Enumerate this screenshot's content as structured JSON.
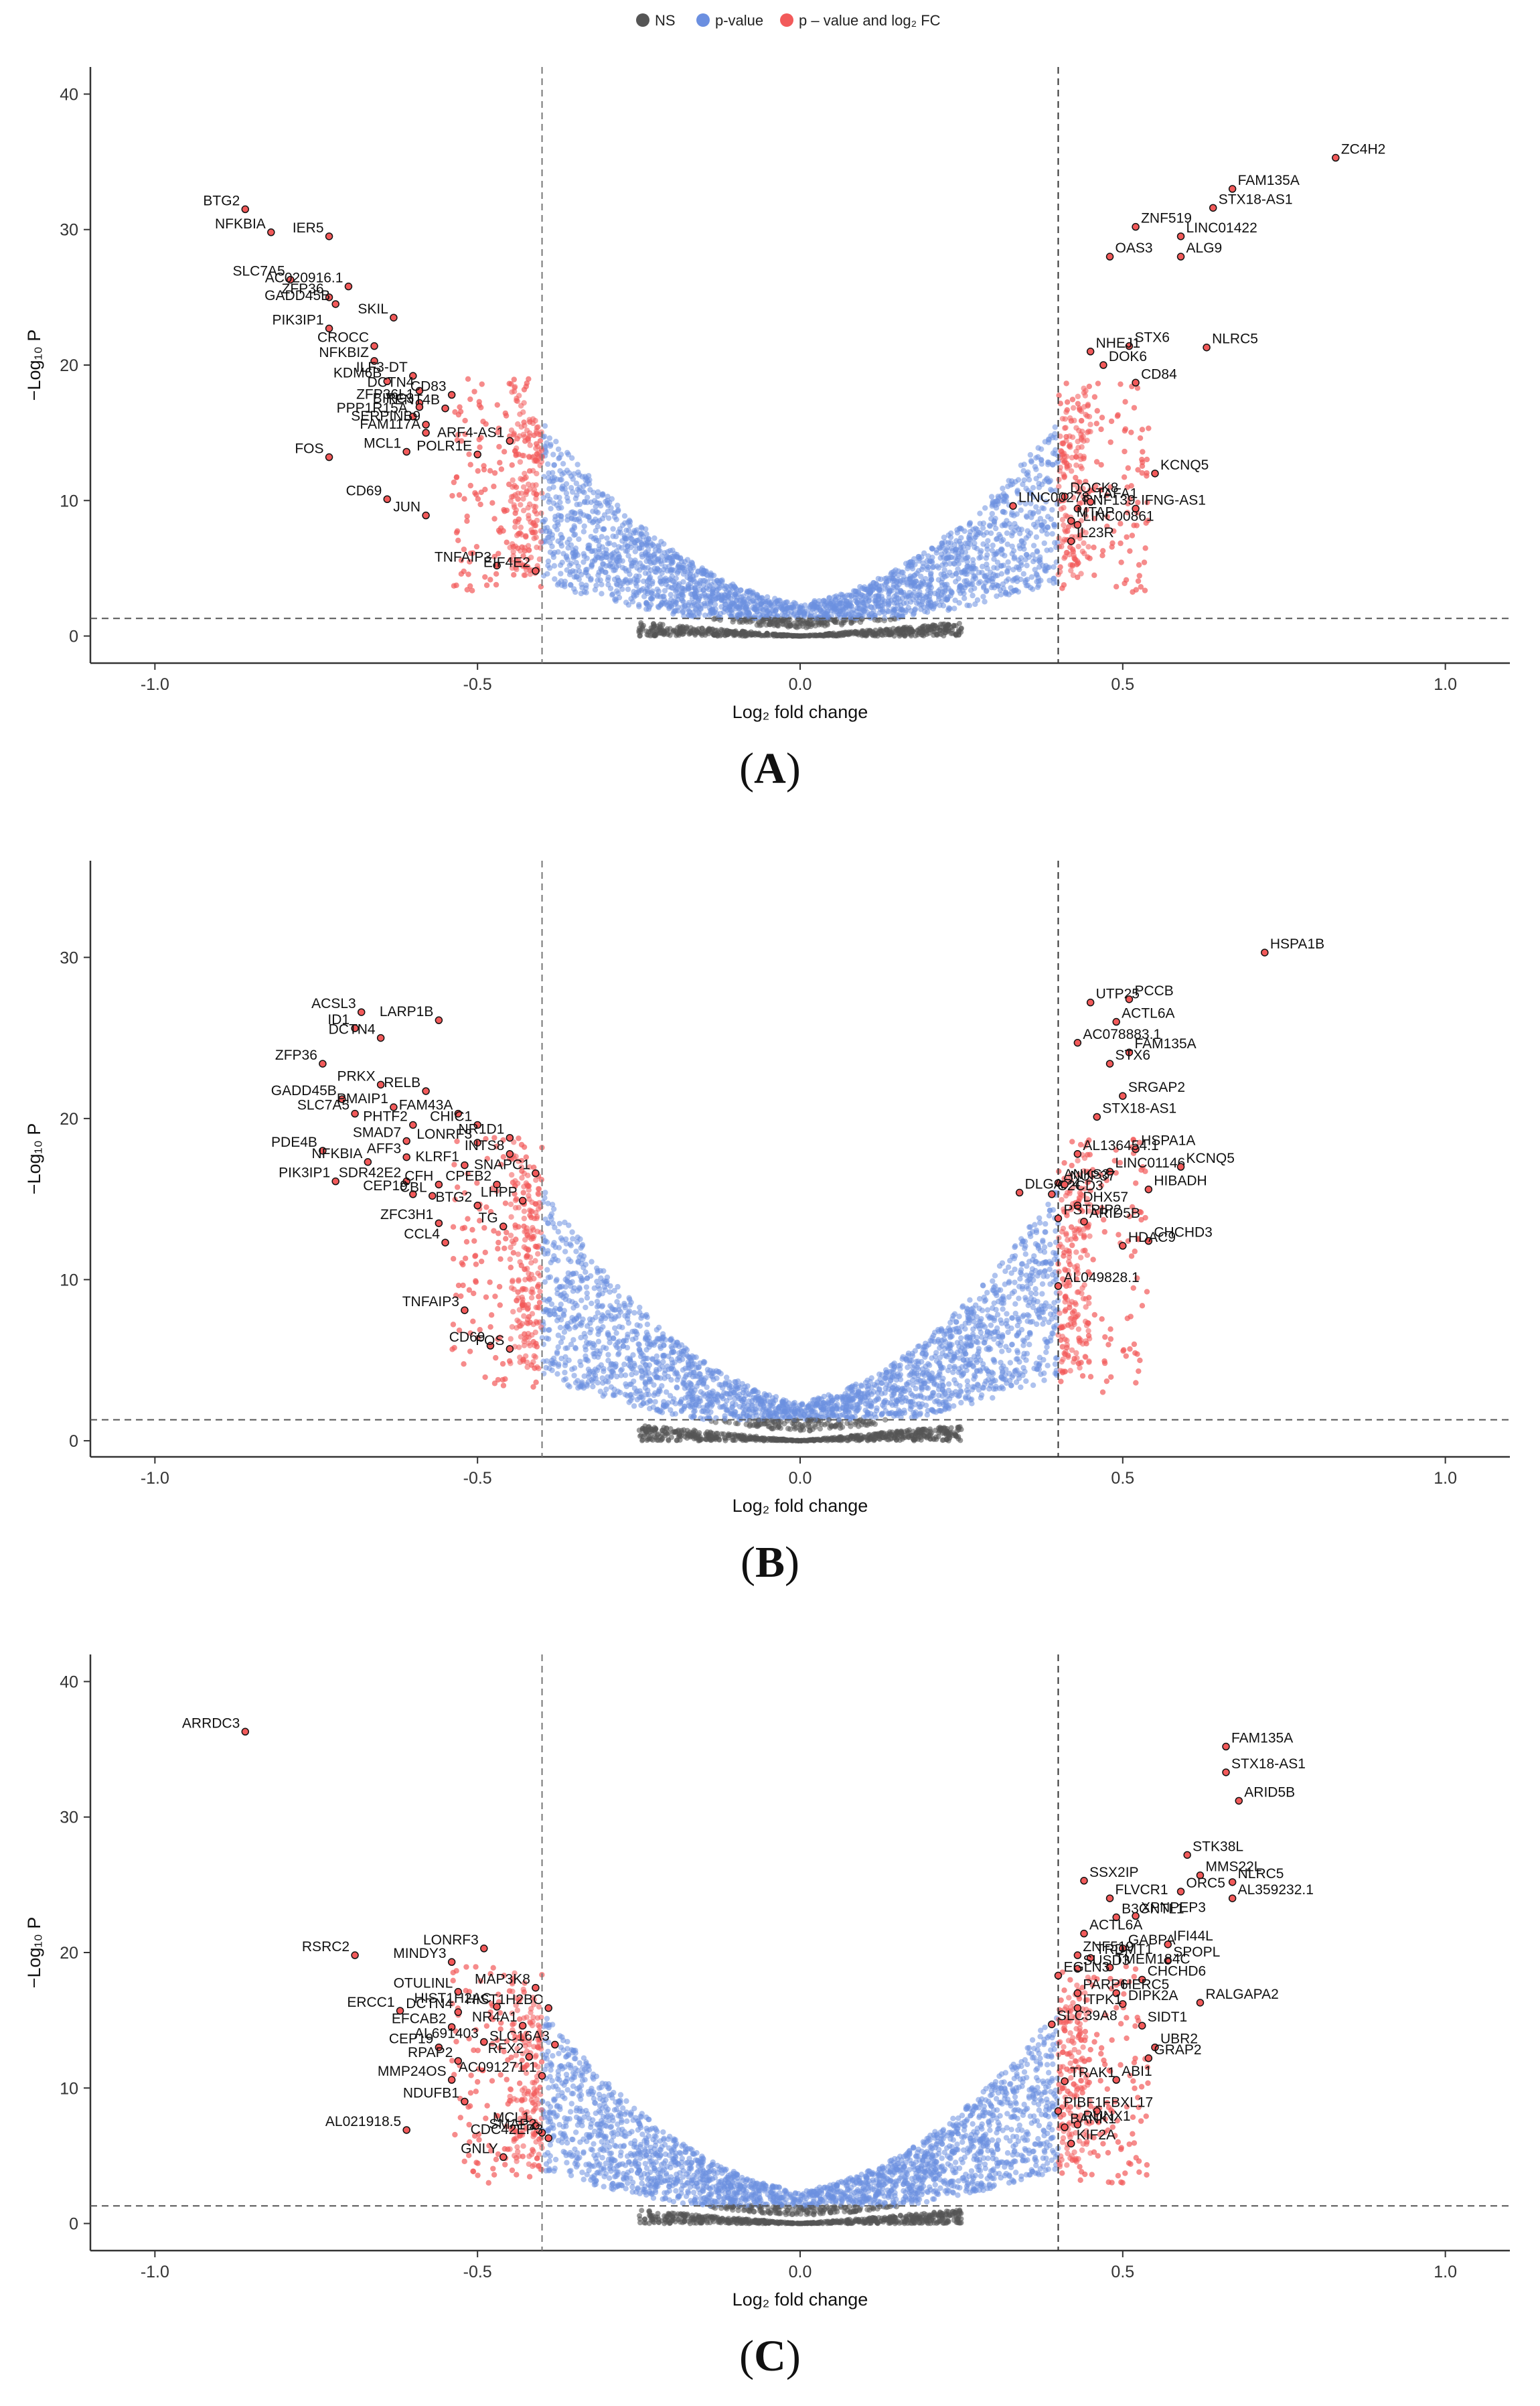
{
  "legend": {
    "items": [
      {
        "label": "NS",
        "color": "#555555"
      },
      {
        "label": "p-value",
        "color": "#6b8fe0"
      },
      {
        "label": "p – value and log₂ FC",
        "color": "#f25a5a"
      }
    ]
  },
  "captions": [
    "A",
    "B",
    "C"
  ],
  "chart_data": [
    {
      "type": "scatter",
      "panel": "A",
      "xlabel": "Log₂ fold change",
      "ylabel": "−Log₁₀ P",
      "xlim": [
        -1.1,
        1.1
      ],
      "ylim": [
        -2,
        42
      ],
      "xticks": [
        -1.0,
        -0.5,
        0.0,
        0.5,
        1.0
      ],
      "xtick_labels": [
        "-1.0",
        "-0.5",
        "0.0",
        "0.5",
        "1.0"
      ],
      "yticks": [
        0,
        10,
        20,
        30,
        40
      ],
      "ytick_labels": [
        "0",
        "10",
        "20",
        "30",
        "40"
      ],
      "fc_cutoffs": [
        -0.4,
        0.4
      ],
      "p_cutoff": 1.3,
      "labeled_points": [
        {
          "name": "BTG2",
          "x": -0.86,
          "y": 31.5
        },
        {
          "name": "NFKBIA",
          "x": -0.82,
          "y": 29.8
        },
        {
          "name": "IER5",
          "x": -0.73,
          "y": 29.5
        },
        {
          "name": "SLC7A5",
          "x": -0.79,
          "y": 26.3
        },
        {
          "name": "AC020916.1",
          "x": -0.7,
          "y": 25.8
        },
        {
          "name": "ZFP36",
          "x": -0.73,
          "y": 25.0
        },
        {
          "name": "GADD45B",
          "x": -0.72,
          "y": 24.5
        },
        {
          "name": "SKIL",
          "x": -0.63,
          "y": 23.5
        },
        {
          "name": "PIK3IP1",
          "x": -0.73,
          "y": 22.7
        },
        {
          "name": "CROCC",
          "x": -0.66,
          "y": 21.4
        },
        {
          "name": "NFKBIZ",
          "x": -0.66,
          "y": 20.3
        },
        {
          "name": "ILF3-DT",
          "x": -0.6,
          "y": 19.2
        },
        {
          "name": "KDM6B",
          "x": -0.64,
          "y": 18.8
        },
        {
          "name": "DCTN4",
          "x": -0.59,
          "y": 18.1
        },
        {
          "name": "CD83",
          "x": -0.54,
          "y": 17.8
        },
        {
          "name": "ZFP36L1",
          "x": -0.59,
          "y": 17.2
        },
        {
          "name": "BIRC3",
          "x": -0.59,
          "y": 16.9
        },
        {
          "name": "TENT4B",
          "x": -0.55,
          "y": 16.8
        },
        {
          "name": "PPP1R15A",
          "x": -0.6,
          "y": 16.2
        },
        {
          "name": "SERPINB9",
          "x": -0.58,
          "y": 15.6
        },
        {
          "name": "FAM117A",
          "x": -0.58,
          "y": 15.0
        },
        {
          "name": "ARF4-AS1",
          "x": -0.45,
          "y": 14.4
        },
        {
          "name": "MCL1",
          "x": -0.61,
          "y": 13.6
        },
        {
          "name": "POLR1E",
          "x": -0.5,
          "y": 13.4
        },
        {
          "name": "FOS",
          "x": -0.73,
          "y": 13.2
        },
        {
          "name": "CD69",
          "x": -0.64,
          "y": 10.1
        },
        {
          "name": "JUN",
          "x": -0.58,
          "y": 8.9
        },
        {
          "name": "TNFAIP3",
          "x": -0.47,
          "y": 5.2
        },
        {
          "name": "EIF4E2",
          "x": -0.41,
          "y": 4.8
        },
        {
          "name": "ZC4H2",
          "x": 0.83,
          "y": 35.3
        },
        {
          "name": "FAM135A",
          "x": 0.67,
          "y": 33.0
        },
        {
          "name": "STX18-AS1",
          "x": 0.64,
          "y": 31.6
        },
        {
          "name": "ZNF519",
          "x": 0.52,
          "y": 30.2
        },
        {
          "name": "LINC01422",
          "x": 0.59,
          "y": 29.5
        },
        {
          "name": "OAS3",
          "x": 0.48,
          "y": 28.0
        },
        {
          "name": "ALG9",
          "x": 0.59,
          "y": 28.0
        },
        {
          "name": "STX6",
          "x": 0.51,
          "y": 21.4
        },
        {
          "name": "NHEJ1",
          "x": 0.45,
          "y": 21.0
        },
        {
          "name": "NLRC5",
          "x": 0.63,
          "y": 21.3
        },
        {
          "name": "DOK6",
          "x": 0.47,
          "y": 20.0
        },
        {
          "name": "CD84",
          "x": 0.52,
          "y": 18.7
        },
        {
          "name": "KCNQ5",
          "x": 0.55,
          "y": 12.0
        },
        {
          "name": "DOCK8",
          "x": 0.41,
          "y": 10.3
        },
        {
          "name": "LINC00278",
          "x": 0.33,
          "y": 9.6
        },
        {
          "name": "RNF139",
          "x": 0.43,
          "y": 9.4
        },
        {
          "name": "TAFA1",
          "x": 0.45,
          "y": 9.9
        },
        {
          "name": "IFNG-AS1",
          "x": 0.52,
          "y": 9.4
        },
        {
          "name": "MTAP",
          "x": 0.42,
          "y": 8.5
        },
        {
          "name": "LINC00861",
          "x": 0.43,
          "y": 8.2
        },
        {
          "name": "IL23R",
          "x": 0.42,
          "y": 7.0
        }
      ]
    },
    {
      "type": "scatter",
      "panel": "B",
      "xlabel": "Log₂ fold change",
      "ylabel": "−Log₁₀ P",
      "xlim": [
        -1.1,
        1.1
      ],
      "ylim": [
        -1,
        36
      ],
      "xticks": [
        -1.0,
        -0.5,
        0.0,
        0.5,
        1.0
      ],
      "xtick_labels": [
        "-1.0",
        "-0.5",
        "0.0",
        "0.5",
        "1.0"
      ],
      "yticks": [
        0,
        10,
        20,
        30
      ],
      "ytick_labels": [
        "0",
        "10",
        "20",
        "30"
      ],
      "fc_cutoffs": [
        -0.4,
        0.4
      ],
      "p_cutoff": 1.3,
      "labeled_points": [
        {
          "name": "ACSL3",
          "x": -0.68,
          "y": 26.6
        },
        {
          "name": "ID1",
          "x": -0.69,
          "y": 25.6
        },
        {
          "name": "LARP1B",
          "x": -0.56,
          "y": 26.1
        },
        {
          "name": "DCTN4",
          "x": -0.65,
          "y": 25.0
        },
        {
          "name": "ZFP36",
          "x": -0.74,
          "y": 23.4
        },
        {
          "name": "PRKX",
          "x": -0.65,
          "y": 22.1
        },
        {
          "name": "RELB",
          "x": -0.58,
          "y": 21.7
        },
        {
          "name": "GADD45B",
          "x": -0.71,
          "y": 21.2
        },
        {
          "name": "PMAIP1",
          "x": -0.63,
          "y": 20.7
        },
        {
          "name": "FAM43A",
          "x": -0.53,
          "y": 20.3
        },
        {
          "name": "SLC7A5",
          "x": -0.69,
          "y": 20.3
        },
        {
          "name": "PHTF2",
          "x": -0.6,
          "y": 19.6
        },
        {
          "name": "CHIC1",
          "x": -0.5,
          "y": 19.6
        },
        {
          "name": "NR1D1",
          "x": -0.45,
          "y": 18.8
        },
        {
          "name": "SMAD7",
          "x": -0.61,
          "y": 18.6
        },
        {
          "name": "LONRF3",
          "x": -0.5,
          "y": 18.5
        },
        {
          "name": "INTS8",
          "x": -0.45,
          "y": 17.8
        },
        {
          "name": "PDE4B",
          "x": -0.74,
          "y": 18.0
        },
        {
          "name": "AFF3",
          "x": -0.61,
          "y": 17.6
        },
        {
          "name": "NFKBIA",
          "x": -0.67,
          "y": 17.3
        },
        {
          "name": "KLRF1",
          "x": -0.52,
          "y": 17.1
        },
        {
          "name": "SNAPC1",
          "x": -0.41,
          "y": 16.6
        },
        {
          "name": "PIK3IP1",
          "x": -0.72,
          "y": 16.1
        },
        {
          "name": "SDR42E2",
          "x": -0.61,
          "y": 16.1
        },
        {
          "name": "CFH",
          "x": -0.56,
          "y": 15.9
        },
        {
          "name": "CPEB2",
          "x": -0.47,
          "y": 15.9
        },
        {
          "name": "CEP19",
          "x": -0.6,
          "y": 15.3
        },
        {
          "name": "CBL",
          "x": -0.57,
          "y": 15.2
        },
        {
          "name": "LHPP",
          "x": -0.43,
          "y": 14.9
        },
        {
          "name": "BTG2",
          "x": -0.5,
          "y": 14.6
        },
        {
          "name": "ZFC3H1",
          "x": -0.56,
          "y": 13.5
        },
        {
          "name": "TG",
          "x": -0.46,
          "y": 13.3
        },
        {
          "name": "CCL4",
          "x": -0.55,
          "y": 12.3
        },
        {
          "name": "TNFAIP3",
          "x": -0.52,
          "y": 8.1
        },
        {
          "name": "CD69",
          "x": -0.48,
          "y": 5.9
        },
        {
          "name": "FOS",
          "x": -0.45,
          "y": 5.7
        },
        {
          "name": "HSPA1B",
          "x": 0.72,
          "y": 30.3
        },
        {
          "name": "UTP25",
          "x": 0.45,
          "y": 27.2
        },
        {
          "name": "PCCB",
          "x": 0.51,
          "y": 27.4
        },
        {
          "name": "ACTL6A",
          "x": 0.49,
          "y": 26.0
        },
        {
          "name": "AC078883.1",
          "x": 0.43,
          "y": 24.7
        },
        {
          "name": "FAM135A",
          "x": 0.51,
          "y": 24.1
        },
        {
          "name": "STX6",
          "x": 0.48,
          "y": 23.4
        },
        {
          "name": "SRGAP2",
          "x": 0.5,
          "y": 21.4
        },
        {
          "name": "STX18-AS1",
          "x": 0.46,
          "y": 20.1
        },
        {
          "name": "HSPA1A",
          "x": 0.52,
          "y": 18.1
        },
        {
          "name": "AL136454.1",
          "x": 0.43,
          "y": 17.8
        },
        {
          "name": "LINC01146",
          "x": 0.48,
          "y": 16.7
        },
        {
          "name": "KCNQ5",
          "x": 0.59,
          "y": 17.0
        },
        {
          "name": "ANKS3",
          "x": 0.4,
          "y": 16.0
        },
        {
          "name": "HIBADH",
          "x": 0.54,
          "y": 15.6
        },
        {
          "name": "DLGAP4",
          "x": 0.34,
          "y": 15.4
        },
        {
          "name": "C2CD3",
          "x": 0.39,
          "y": 15.3
        },
        {
          "name": "NUP37",
          "x": 0.41,
          "y": 15.9
        },
        {
          "name": "DHX57",
          "x": 0.43,
          "y": 14.6
        },
        {
          "name": "PSTPIP2",
          "x": 0.4,
          "y": 13.8
        },
        {
          "name": "ARID5B",
          "x": 0.44,
          "y": 13.6
        },
        {
          "name": "CHCHD3",
          "x": 0.54,
          "y": 12.4
        },
        {
          "name": "HDAC9",
          "x": 0.5,
          "y": 12.1
        },
        {
          "name": "AL049828.1",
          "x": 0.4,
          "y": 9.6
        }
      ]
    },
    {
      "type": "scatter",
      "panel": "C",
      "xlabel": "Log₂ fold change",
      "ylabel": "−Log₁₀ P",
      "xlim": [
        -1.1,
        1.1
      ],
      "ylim": [
        -2,
        42
      ],
      "xticks": [
        -1.0,
        -0.5,
        0.0,
        0.5,
        1.0
      ],
      "xtick_labels": [
        "-1.0",
        "-0.5",
        "0.0",
        "0.5",
        "1.0"
      ],
      "yticks": [
        0,
        10,
        20,
        30,
        40
      ],
      "ytick_labels": [
        "0",
        "10",
        "20",
        "30",
        "40"
      ],
      "fc_cutoffs": [
        -0.4,
        0.4
      ],
      "p_cutoff": 1.3,
      "labeled_points": [
        {
          "name": "ARRDC3",
          "x": -0.86,
          "y": 36.3
        },
        {
          "name": "RSRC2",
          "x": -0.69,
          "y": 19.8
        },
        {
          "name": "LONRF3",
          "x": -0.49,
          "y": 20.3
        },
        {
          "name": "MINDY3",
          "x": -0.54,
          "y": 19.3
        },
        {
          "name": "MAP3K8",
          "x": -0.41,
          "y": 17.4
        },
        {
          "name": "OTULINL",
          "x": -0.53,
          "y": 17.1
        },
        {
          "name": "HIST1H2AC",
          "x": -0.47,
          "y": 16.0
        },
        {
          "name": "HIST1H2BC",
          "x": -0.39,
          "y": 15.9
        },
        {
          "name": "ERCC1",
          "x": -0.62,
          "y": 15.7
        },
        {
          "name": "DCTN4",
          "x": -0.53,
          "y": 15.6
        },
        {
          "name": "NR4A1",
          "x": -0.43,
          "y": 14.6
        },
        {
          "name": "EFCAB2",
          "x": -0.54,
          "y": 14.5
        },
        {
          "name": "AL691403",
          "x": -0.49,
          "y": 13.4
        },
        {
          "name": "CEP19",
          "x": -0.56,
          "y": 13.0
        },
        {
          "name": "SLC16A3",
          "x": -0.38,
          "y": 13.2
        },
        {
          "name": "RFX2",
          "x": -0.42,
          "y": 12.3
        },
        {
          "name": "RPAP2",
          "x": -0.53,
          "y": 12.0
        },
        {
          "name": "AC091271.1",
          "x": -0.4,
          "y": 10.9
        },
        {
          "name": "MMP24OS",
          "x": -0.54,
          "y": 10.6
        },
        {
          "name": "NDUFB1",
          "x": -0.52,
          "y": 9.0
        },
        {
          "name": "AL021918.5",
          "x": -0.61,
          "y": 6.9
        },
        {
          "name": "MCL1",
          "x": -0.41,
          "y": 7.2
        },
        {
          "name": "SMAP2",
          "x": -0.4,
          "y": 6.7
        },
        {
          "name": "CDC42EP3",
          "x": -0.39,
          "y": 6.3
        },
        {
          "name": "GNLY",
          "x": -0.46,
          "y": 4.9
        },
        {
          "name": "FAM135A",
          "x": 0.66,
          "y": 35.2
        },
        {
          "name": "STX18-AS1",
          "x": 0.66,
          "y": 33.3
        },
        {
          "name": "ARID5B",
          "x": 0.68,
          "y": 31.2
        },
        {
          "name": "STK38L",
          "x": 0.6,
          "y": 27.2
        },
        {
          "name": "MMS22L",
          "x": 0.62,
          "y": 25.7
        },
        {
          "name": "SSX2IP",
          "x": 0.44,
          "y": 25.3
        },
        {
          "name": "NLRC5",
          "x": 0.67,
          "y": 25.2
        },
        {
          "name": "ORC5",
          "x": 0.59,
          "y": 24.5
        },
        {
          "name": "FLVCR1",
          "x": 0.48,
          "y": 24.0
        },
        {
          "name": "AL359232.1",
          "x": 0.67,
          "y": 24.0
        },
        {
          "name": "B3GNTL1",
          "x": 0.49,
          "y": 22.6
        },
        {
          "name": "XPNPEP3",
          "x": 0.52,
          "y": 22.7
        },
        {
          "name": "ACTL6A",
          "x": 0.44,
          "y": 21.4
        },
        {
          "name": "GABPA",
          "x": 0.5,
          "y": 20.3
        },
        {
          "name": "IFI44L",
          "x": 0.57,
          "y": 20.6
        },
        {
          "name": "ZNF519",
          "x": 0.43,
          "y": 19.8
        },
        {
          "name": "TRDMT1",
          "x": 0.45,
          "y": 19.6
        },
        {
          "name": "SPOPL",
          "x": 0.57,
          "y": 19.4
        },
        {
          "name": "SUSD3",
          "x": 0.43,
          "y": 18.8
        },
        {
          "name": "TMEM184C",
          "x": 0.48,
          "y": 18.9
        },
        {
          "name": "EGLN3",
          "x": 0.4,
          "y": 18.3
        },
        {
          "name": "CHCHD6",
          "x": 0.53,
          "y": 18.0
        },
        {
          "name": "PARP6",
          "x": 0.43,
          "y": 17.0
        },
        {
          "name": "HERC5",
          "x": 0.49,
          "y": 17.0
        },
        {
          "name": "DIPK2A",
          "x": 0.5,
          "y": 16.2
        },
        {
          "name": "RALGAPA2",
          "x": 0.62,
          "y": 16.3
        },
        {
          "name": "ITPK1",
          "x": 0.43,
          "y": 15.9
        },
        {
          "name": "SLC39A8",
          "x": 0.39,
          "y": 14.7
        },
        {
          "name": "SIDT1",
          "x": 0.53,
          "y": 14.6
        },
        {
          "name": "UBR2",
          "x": 0.55,
          "y": 13.0
        },
        {
          "name": "GRAP2",
          "x": 0.54,
          "y": 12.2
        },
        {
          "name": "TRAK1",
          "x": 0.41,
          "y": 10.5
        },
        {
          "name": "ABI1",
          "x": 0.49,
          "y": 10.6
        },
        {
          "name": "PIBF1",
          "x": 0.4,
          "y": 8.3
        },
        {
          "name": "FBXL17",
          "x": 0.46,
          "y": 8.3
        },
        {
          "name": "BANK1",
          "x": 0.41,
          "y": 7.1
        },
        {
          "name": "RUNX1",
          "x": 0.43,
          "y": 7.3
        },
        {
          "name": "KIF2A",
          "x": 0.42,
          "y": 5.9
        }
      ]
    }
  ]
}
